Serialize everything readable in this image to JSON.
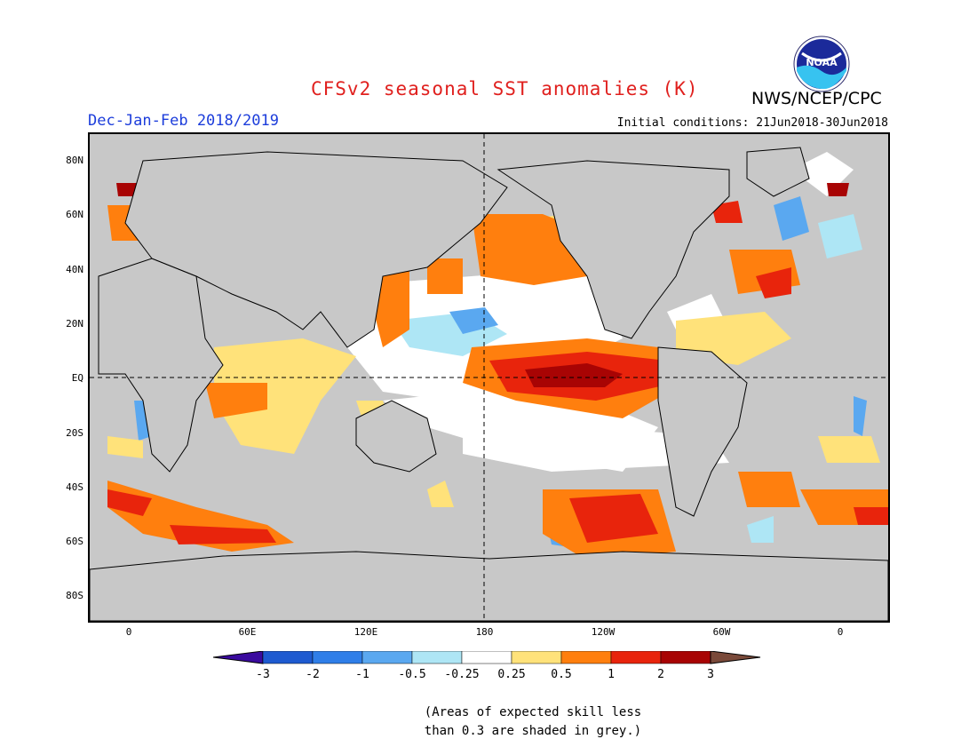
{
  "header": {
    "title": "CFSv2 seasonal SST anomalies (K)",
    "agency": "NWS/NCEP/CPC",
    "season": "Dec-Jan-Feb 2018/2019",
    "initial_conditions": "Initial conditions: 21Jun2018-30Jun2018",
    "logo_text": "NOAA"
  },
  "colors": {
    "title": "#e0201e",
    "season": "#1c3ddb",
    "land": "#c8c8c8",
    "ocean_low_skill": "#c8c8c8",
    "ocean_neutral": "#ffffff"
  },
  "map": {
    "lat_labels": [
      "80N",
      "60N",
      "40N",
      "20N",
      "EQ",
      "20S",
      "40S",
      "60S",
      "80S"
    ],
    "lon_labels": [
      "0",
      "60E",
      "120E",
      "180",
      "120W",
      "60W",
      "0"
    ]
  },
  "colorbar": {
    "labels": [
      "-3",
      "-2",
      "-1",
      "-0.5",
      "-0.25",
      "0.25",
      "0.5",
      "1",
      "2",
      "3"
    ],
    "colors": [
      "#3a0a9e",
      "#1e5ad0",
      "#2f7ee8",
      "#5aa8f0",
      "#aee6f5",
      "#ffffff",
      "#ffe27a",
      "#ff7f0e",
      "#e8240c",
      "#a80404",
      "#7a4a3a"
    ]
  },
  "footnote": {
    "line1": "(Areas of expected skill less",
    "line2": "than 0.3 are shaded in grey.)"
  }
}
